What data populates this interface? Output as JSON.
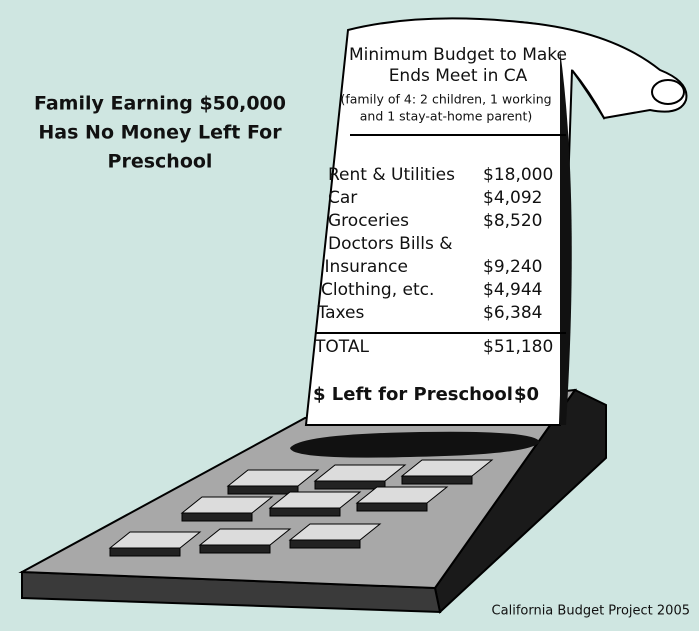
{
  "headline": [
    "Family Earning $50,000",
    "Has No Money Left For",
    "Preschool"
  ],
  "receipt": {
    "title": [
      "Minimum Budget to Make",
      "Ends Meet in CA"
    ],
    "subtitle": [
      "(family of 4: 2 children, 1 working",
      "and 1 stay-at-home parent)"
    ],
    "items": [
      {
        "label": [
          "Rent & Utilities"
        ],
        "amount": "$18,000"
      },
      {
        "label": [
          "Car"
        ],
        "amount": "$4,092"
      },
      {
        "label": [
          "Groceries"
        ],
        "amount": "$8,520"
      },
      {
        "label": [
          "Doctors Bills &",
          "Insurance"
        ],
        "amount": "$9,240"
      },
      {
        "label": [
          "Clothing, etc."
        ],
        "amount": "$4,944"
      },
      {
        "label": [
          "Taxes"
        ],
        "amount": "$6,384"
      }
    ],
    "total_label": "TOTAL",
    "total_amount": "$51,180",
    "left_label": "$ Left for Preschool",
    "left_amount": "$0"
  },
  "source": "California Budget Project 2005"
}
